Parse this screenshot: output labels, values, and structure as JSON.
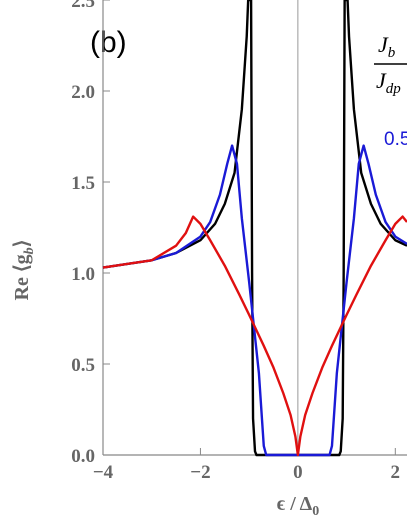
{
  "chart_data": {
    "type": "line",
    "annotation": "(b)",
    "x_label": {
      "main": "ϵ / Δ",
      "sub": "0"
    },
    "y_label": {
      "main": "Re ⟨g",
      "sub": "b",
      "end": "⟩"
    },
    "legend_title": {
      "numerator": "J",
      "numerator_sub": "b",
      "denominator": "J",
      "denominator_sub": "dp"
    },
    "xlim": [
      -4,
      2.24
    ],
    "ylim": [
      0,
      2.5
    ],
    "xticks": [
      {
        "value": -4,
        "label": "−4"
      },
      {
        "value": -2,
        "label": "−2"
      },
      0,
      2
    ],
    "yticks": [
      {
        "value": 0,
        "label": "0.0"
      },
      {
        "value": 0.5,
        "label": "0.5"
      },
      {
        "value": 1,
        "label": "1.0"
      },
      {
        "value": 1.5,
        "label": "1.5"
      },
      {
        "value": 2,
        "label": "2.0"
      },
      {
        "value": 2.5,
        "label": "2.5"
      }
    ],
    "series": [
      {
        "color": "#000000",
        "x": [
          -4,
          -3.5,
          -3,
          -2.5,
          -2,
          -1.7,
          -1.5,
          -1.3,
          -1.15,
          -1.05,
          -1.02,
          -0.96,
          -0.94,
          -0.92,
          -0.88,
          -0.85,
          0.85,
          0.88,
          0.92,
          0.94,
          0.96,
          1.02,
          1.05,
          1.15,
          1.3,
          1.5,
          1.7,
          2,
          2.24
        ],
        "values": [
          1.03,
          1.05,
          1.07,
          1.11,
          1.18,
          1.27,
          1.38,
          1.55,
          1.9,
          2.3,
          2.5,
          2.5,
          1.0,
          0.2,
          0.02,
          0,
          0,
          0.02,
          0.2,
          1.0,
          2.5,
          2.5,
          2.3,
          1.9,
          1.55,
          1.38,
          1.27,
          1.18,
          1.15
        ]
      },
      {
        "name": "0.5",
        "color": "#1a1ad6",
        "x": [
          -4,
          -3,
          -2.5,
          -2,
          -1.8,
          -1.6,
          -1.45,
          -1.35,
          -1.25,
          -1.15,
          -1.0,
          -0.9,
          -0.8,
          -0.7,
          -0.65,
          0.65,
          0.7,
          0.8,
          0.9,
          1.0,
          1.15,
          1.25,
          1.35,
          1.45,
          1.6,
          1.8,
          2,
          2.24
        ],
        "values": [
          1.03,
          1.07,
          1.11,
          1.2,
          1.28,
          1.43,
          1.6,
          1.7,
          1.6,
          1.3,
          0.95,
          0.7,
          0.45,
          0.05,
          0,
          0,
          0.05,
          0.45,
          0.7,
          0.95,
          1.3,
          1.6,
          1.7,
          1.6,
          1.43,
          1.28,
          1.2,
          1.16
        ]
      },
      {
        "color": "#e01010",
        "x": [
          -4,
          -3,
          -2.5,
          -2.3,
          -2.15,
          -2.0,
          -1.8,
          -1.5,
          -1.2,
          -1.0,
          -0.7,
          -0.5,
          -0.3,
          -0.15,
          -0.05,
          0,
          0.05,
          0.15,
          0.3,
          0.5,
          0.7,
          1.0,
          1.2,
          1.5,
          1.8,
          2.0,
          2.15,
          2.24
        ],
        "values": [
          1.03,
          1.07,
          1.15,
          1.22,
          1.31,
          1.27,
          1.18,
          1.04,
          0.88,
          0.77,
          0.6,
          0.48,
          0.34,
          0.22,
          0.1,
          0,
          0.1,
          0.22,
          0.34,
          0.48,
          0.6,
          0.77,
          0.88,
          1.04,
          1.18,
          1.27,
          1.31,
          1.28
        ]
      }
    ]
  }
}
